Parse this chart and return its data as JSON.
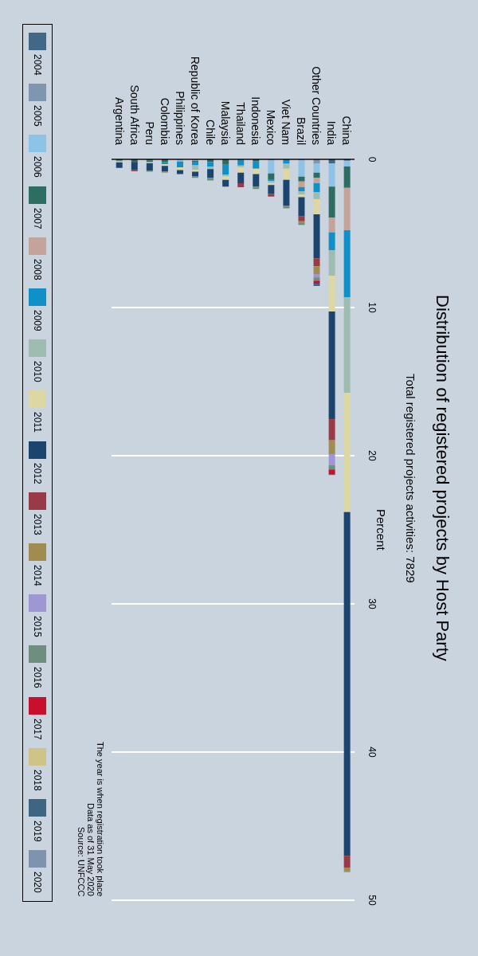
{
  "chart_data": {
    "type": "bar",
    "stacked": true,
    "title": "Distribution of registered projects by Host Party",
    "subtitle": "Total registered projects activities: 7829",
    "ylabel": "Percent",
    "annotations": [
      "The year is when registration took place",
      "Data as of 31 May 2020",
      "Source: UNFCCC"
    ],
    "categories": [
      "Argentina",
      "South Africa",
      "Peru",
      "Colombia",
      "Philippines",
      "Republic of Korea",
      "Chile",
      "Malaysia",
      "Thailand",
      "Indonesia",
      "Mexico",
      "Viet Nam",
      "Brazil",
      "Other Countries",
      "India",
      "China"
    ],
    "ylim": [
      50,
      0
    ],
    "yticks": [
      0,
      10,
      20,
      30,
      40,
      50
    ],
    "grid": "y",
    "legend": "left",
    "series": [
      {
        "name": "2004",
        "color": "#416886",
        "values": [
          null,
          null,
          0.09,
          null,
          null,
          null,
          null,
          null,
          null,
          null,
          null,
          null,
          null,
          null,
          0.27,
          0.1
        ]
      },
      {
        "name": "2005",
        "color": "#7f96b0",
        "values": [
          null,
          null,
          null,
          null,
          null,
          null,
          null,
          null,
          null,
          null,
          null,
          null,
          null,
          0.3,
          null,
          null
        ]
      },
      {
        "name": "2006",
        "color": "#8ec3e8",
        "values": [
          null,
          null,
          null,
          null,
          0.15,
          0.1,
          null,
          null,
          null,
          null,
          0.95,
          null,
          1.17,
          0.6,
          1.57,
          0.38
        ]
      },
      {
        "name": "2007",
        "color": "#2e6e62",
        "values": [
          0.09,
          0.21,
          0.09,
          0.18,
          null,
          0.1,
          0.18,
          0.36,
          null,
          0.15,
          0.39,
          null,
          0.32,
          0.35,
          2.1,
          1.44
        ]
      },
      {
        "name": "2008",
        "color": "#c4a39b",
        "values": [
          null,
          null,
          null,
          null,
          null,
          null,
          null,
          null,
          null,
          null,
          null,
          null,
          0.39,
          0.36,
          0.99,
          2.86
        ]
      },
      {
        "name": "2009",
        "color": "#0f90c8",
        "values": [
          null,
          null,
          null,
          0.14,
          0.39,
          0.2,
          0.3,
          0.66,
          0.41,
          0.48,
          0.13,
          0.3,
          0.27,
          0.59,
          1.2,
          4.54
        ]
      },
      {
        "name": "2010",
        "color": "#9fbcb0",
        "values": [
          0.13,
          null,
          0.09,
          null,
          null,
          0.3,
          0.18,
          0.14,
          0.12,
          null,
          0.13,
          0.33,
          0.23,
          0.49,
          1.72,
          6.43
        ]
      },
      {
        "name": "2011",
        "color": "#ddd7a4",
        "values": [
          null,
          null,
          null,
          0.13,
          0.18,
          0.13,
          null,
          0.22,
          0.37,
          0.36,
          0.14,
          0.75,
          0.18,
          1.02,
          2.42,
          8.05
        ]
      },
      {
        "name": "2012",
        "color": "#1b456e",
        "values": [
          0.36,
          0.51,
          0.48,
          0.36,
          0.27,
          0.33,
          0.59,
          0.46,
          0.71,
          0.85,
          0.59,
          1.76,
          1.29,
          2.97,
          7.26,
          23.2
        ]
      },
      {
        "name": "2013",
        "color": "#993b47",
        "values": [
          null,
          0.09,
          null,
          null,
          null,
          null,
          null,
          null,
          0.27,
          null,
          0.18,
          null,
          0.33,
          0.54,
          1.43,
          0.8
        ]
      },
      {
        "name": "2014",
        "color": "#a08c4f",
        "values": [
          null,
          null,
          null,
          0.09,
          null,
          null,
          null,
          null,
          null,
          null,
          null,
          null,
          0.12,
          0.52,
          0.93,
          0.25
        ]
      },
      {
        "name": "2015",
        "color": "#9e97d4",
        "values": [
          null,
          null,
          null,
          null,
          null,
          null,
          null,
          null,
          null,
          null,
          null,
          null,
          null,
          0.23,
          0.76,
          null
        ]
      },
      {
        "name": "2016",
        "color": "#6e8e7e",
        "values": [
          null,
          null,
          0.09,
          null,
          null,
          0.09,
          0.18,
          null,
          null,
          0.16,
          null,
          0.17,
          0.13,
          0.22,
          0.28,
          0.05
        ]
      },
      {
        "name": "2017",
        "color": "#c8102e",
        "values": [
          null,
          null,
          null,
          null,
          null,
          null,
          null,
          null,
          null,
          null,
          null,
          null,
          null,
          0.2,
          0.31,
          null
        ]
      },
      {
        "name": "2018",
        "color": "#cfc485",
        "values": [
          null,
          null,
          null,
          null,
          null,
          null,
          null,
          null,
          null,
          null,
          null,
          null,
          null,
          null,
          null,
          null
        ]
      },
      {
        "name": "2019",
        "color": "#3e6682",
        "values": [
          null,
          null,
          null,
          null,
          null,
          null,
          null,
          null,
          null,
          null,
          null,
          null,
          null,
          0.16,
          0.06,
          null
        ]
      },
      {
        "name": "2020",
        "color": "#7e93ad",
        "values": [
          null,
          null,
          null,
          null,
          null,
          null,
          null,
          null,
          null,
          null,
          null,
          null,
          null,
          null,
          null,
          null
        ]
      }
    ]
  }
}
